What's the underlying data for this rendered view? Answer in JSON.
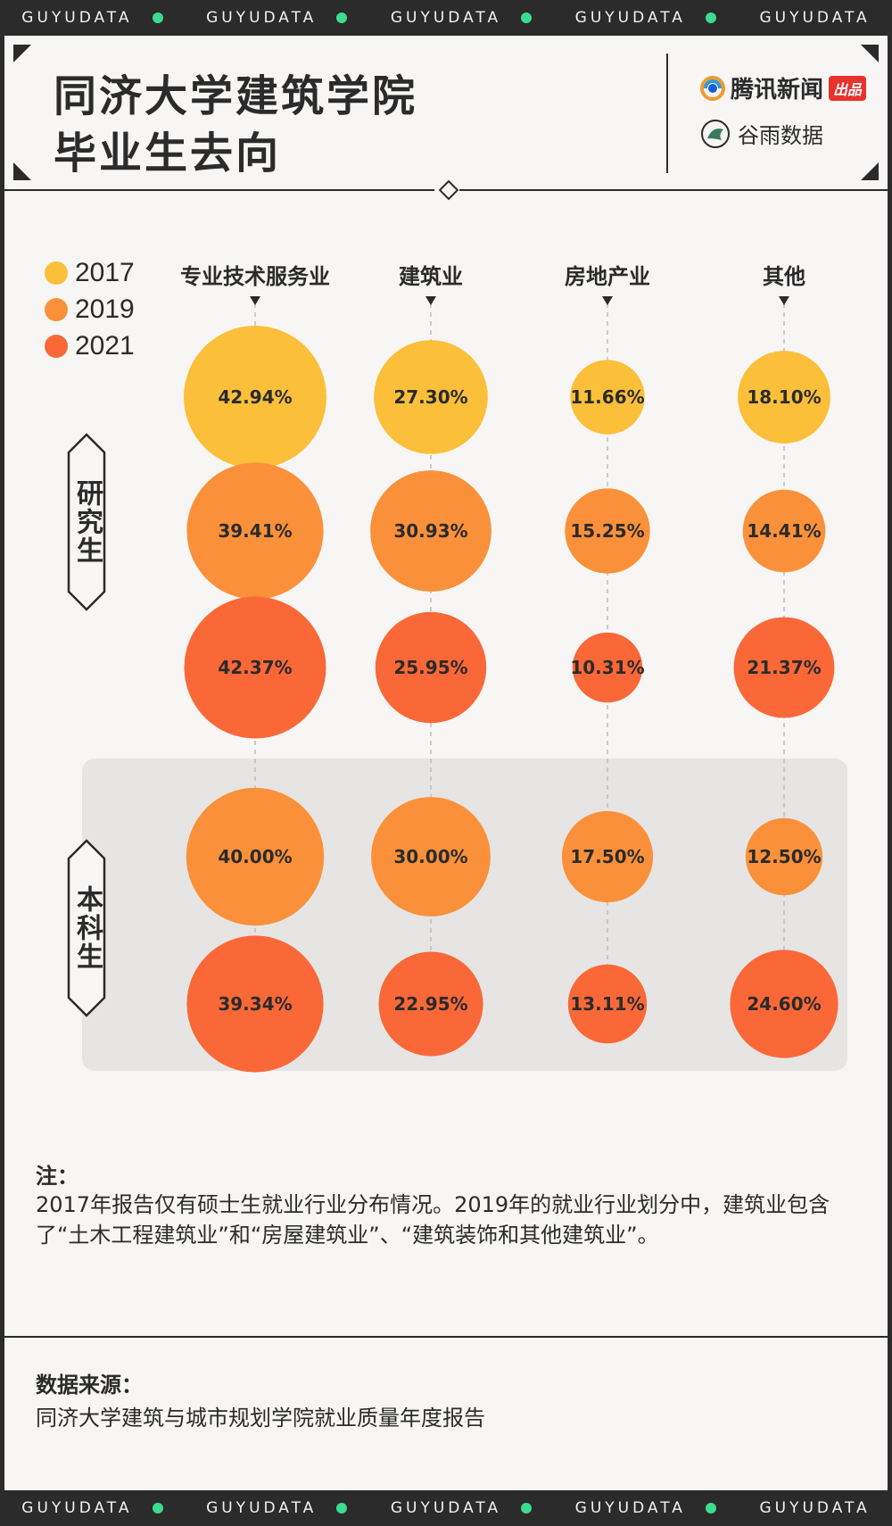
{
  "banner": {
    "text": "GUYUDATA",
    "dot_color": "#3ddb8f"
  },
  "header": {
    "title_line1": "同济大学建筑学院",
    "title_line2": "毕业生去向",
    "brand1_name": "腾讯新闻",
    "brand1_tag": "出品",
    "brand2_name": "谷雨数据"
  },
  "legend": [
    {
      "label": "2017",
      "color": "#fbbf3a"
    },
    {
      "label": "2019",
      "color": "#fa913a"
    },
    {
      "label": "2021",
      "color": "#fa6838"
    }
  ],
  "row_groups": [
    {
      "label": "研究生"
    },
    {
      "label": "本科生"
    }
  ],
  "chart_data": {
    "type": "bubble",
    "categories": [
      "专业技术服务业",
      "建筑业",
      "房地产业",
      "其他"
    ],
    "rows": [
      {
        "group": "研究生",
        "year": "2017",
        "values": [
          42.94,
          27.3,
          11.66,
          18.1
        ],
        "labels": [
          "42.94%",
          "27.30%",
          "11.66%",
          "18.10%"
        ]
      },
      {
        "group": "研究生",
        "year": "2019",
        "values": [
          39.41,
          30.93,
          15.25,
          14.41
        ],
        "labels": [
          "39.41%",
          "30.93%",
          "15.25%",
          "14.41%"
        ]
      },
      {
        "group": "研究生",
        "year": "2021",
        "values": [
          42.37,
          25.95,
          10.31,
          21.37
        ],
        "labels": [
          "42.37%",
          "25.95%",
          "10.31%",
          "21.37%"
        ]
      },
      {
        "group": "本科生",
        "year": "2019",
        "values": [
          40.0,
          30.0,
          17.5,
          12.5
        ],
        "labels": [
          "40.00%",
          "30.00%",
          "17.50%",
          "12.50%"
        ]
      },
      {
        "group": "本科生",
        "year": "2021",
        "values": [
          39.34,
          22.95,
          13.11,
          24.6
        ],
        "labels": [
          "39.34%",
          "22.95%",
          "13.11%",
          "24.60%"
        ]
      }
    ],
    "unit": "%"
  },
  "note": {
    "title": "注：",
    "text": "2017年报告仅有硕士生就业行业分布情况。2019年的就业行业划分中，建筑业包含了“土木工程建筑业”和“房屋建筑业”、“建筑装饰和其他建筑业”。"
  },
  "source": {
    "title": "数据来源：",
    "text": "同济大学建筑与城市规划学院就业质量年度报告"
  }
}
